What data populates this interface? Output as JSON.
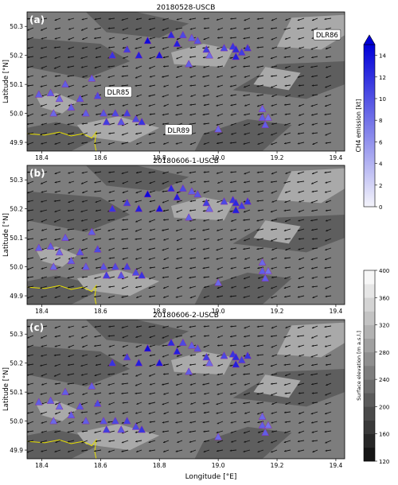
{
  "figure": {
    "xlabel": "Longitude [°E]",
    "ylabel": "Latitude [°N]",
    "x_ticks": [
      "18.4",
      "18.6",
      "18.8",
      "19.0",
      "19.2",
      "19.4"
    ],
    "y_ticks": [
      "49.9",
      "50.0",
      "50.1",
      "50.2",
      "50.3"
    ]
  },
  "panels": [
    {
      "letter": "(a)",
      "title": "20180528-USCB",
      "labels": [
        {
          "text": "DLR86",
          "lon": 19.37,
          "lat": 50.27
        },
        {
          "text": "DLR85",
          "lon": 18.66,
          "lat": 50.073
        },
        {
          "text": "DLR89",
          "lon": 18.865,
          "lat": 49.942
        }
      ]
    },
    {
      "letter": "(b)",
      "title": "20180606-1-USCB",
      "labels": []
    },
    {
      "letter": "(c)",
      "title": "20180606-2-USCB",
      "labels": []
    }
  ],
  "colorbars": [
    {
      "label": "CH4 emission [kt]",
      "ticks": [
        "0",
        "2",
        "4",
        "6",
        "8",
        "10",
        "12",
        "14"
      ],
      "range": [
        0,
        15
      ],
      "colors": [
        "#f4f4fb",
        "#0000d8"
      ]
    },
    {
      "label": "Surface elevation [m a.s.l.]",
      "ticks": [
        "120",
        "160",
        "200",
        "240",
        "280",
        "320",
        "360",
        "400"
      ],
      "range": [
        120,
        400
      ]
    }
  ],
  "chart_data": {
    "type": "scatter",
    "xlim": [
      18.35,
      19.43
    ],
    "ylim": [
      49.87,
      50.35
    ],
    "grid": false,
    "sources": [
      {
        "lon": 18.39,
        "lat": 50.065,
        "ch4": 6
      },
      {
        "lon": 18.43,
        "lat": 50.07,
        "ch4": 6
      },
      {
        "lon": 18.46,
        "lat": 50.05,
        "ch4": 5
      },
      {
        "lon": 18.48,
        "lat": 50.1,
        "ch4": 6
      },
      {
        "lon": 18.5,
        "lat": 50.02,
        "ch4": 6
      },
      {
        "lon": 18.44,
        "lat": 50.0,
        "ch4": 5
      },
      {
        "lon": 18.53,
        "lat": 50.05,
        "ch4": 7
      },
      {
        "lon": 18.55,
        "lat": 50.0,
        "ch4": 6
      },
      {
        "lon": 18.59,
        "lat": 50.06,
        "ch4": 8
      },
      {
        "lon": 18.57,
        "lat": 50.12,
        "ch4": 6
      },
      {
        "lon": 18.61,
        "lat": 50.0,
        "ch4": 7
      },
      {
        "lon": 18.62,
        "lat": 49.97,
        "ch4": 9
      },
      {
        "lon": 18.65,
        "lat": 50.0,
        "ch4": 8
      },
      {
        "lon": 18.67,
        "lat": 49.97,
        "ch4": 7
      },
      {
        "lon": 18.69,
        "lat": 50.0,
        "ch4": 9
      },
      {
        "lon": 18.72,
        "lat": 49.98,
        "ch4": 8
      },
      {
        "lon": 18.74,
        "lat": 49.97,
        "ch4": 10
      },
      {
        "lon": 18.64,
        "lat": 50.2,
        "ch4": 10
      },
      {
        "lon": 18.69,
        "lat": 50.22,
        "ch4": 9
      },
      {
        "lon": 18.73,
        "lat": 50.2,
        "ch4": 12
      },
      {
        "lon": 18.76,
        "lat": 50.25,
        "ch4": 14
      },
      {
        "lon": 18.8,
        "lat": 50.2,
        "ch4": 13
      },
      {
        "lon": 18.84,
        "lat": 50.27,
        "ch4": 11
      },
      {
        "lon": 18.86,
        "lat": 50.24,
        "ch4": 12
      },
      {
        "lon": 18.88,
        "lat": 50.27,
        "ch4": 8
      },
      {
        "lon": 18.91,
        "lat": 50.26,
        "ch4": 6
      },
      {
        "lon": 18.93,
        "lat": 50.25,
        "ch4": 7
      },
      {
        "lon": 18.96,
        "lat": 50.22,
        "ch4": 9
      },
      {
        "lon": 19.02,
        "lat": 50.225,
        "ch4": 8
      },
      {
        "lon": 19.05,
        "lat": 50.23,
        "ch4": 10
      },
      {
        "lon": 19.06,
        "lat": 50.22,
        "ch4": 11
      },
      {
        "lon": 19.08,
        "lat": 50.21,
        "ch4": 9
      },
      {
        "lon": 19.1,
        "lat": 50.225,
        "ch4": 10
      },
      {
        "lon": 19.06,
        "lat": 50.195,
        "ch4": 12
      },
      {
        "lon": 18.9,
        "lat": 50.17,
        "ch4": 6
      },
      {
        "lon": 19.15,
        "lat": 50.015,
        "ch4": 5
      },
      {
        "lon": 19.15,
        "lat": 49.985,
        "ch4": 6
      },
      {
        "lon": 19.16,
        "lat": 49.96,
        "ch4": 6
      },
      {
        "lon": 19.17,
        "lat": 49.985,
        "ch4": 4
      },
      {
        "lon": 19.0,
        "lat": 49.945,
        "ch4": 5
      },
      {
        "lon": 18.97,
        "lat": 50.2,
        "ch4": 5
      }
    ]
  }
}
